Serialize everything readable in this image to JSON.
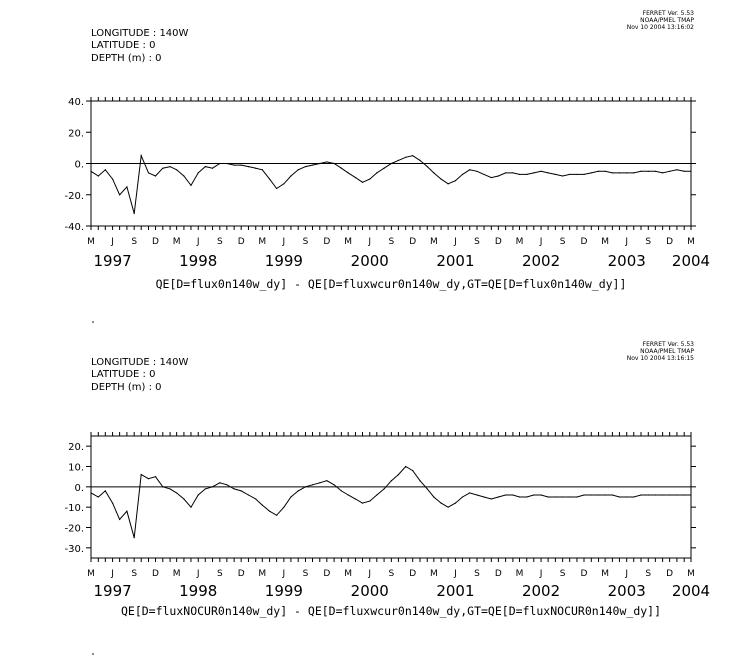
{
  "chart_data": [
    {
      "type": "line",
      "header": {
        "longitude": "LONGITUDE : 140W",
        "latitude": "LATITUDE : 0",
        "depth": "DEPTH (m) : 0"
      },
      "stamp": [
        "FERRET Ver. 5.53",
        "NOAA/PMEL TMAP",
        "Nov 10 2004 13:16:02"
      ],
      "xlabel": "QE[D=flux0n140w_dy] - QE[D=fluxwcur0n140w_dy,GT=QE[D=flux0n140w_dy]]",
      "ylabel": "",
      "ylim": [
        -40,
        40
      ],
      "yticks": [
        -40,
        -20,
        0,
        20,
        40
      ],
      "ytick_labels": [
        "-40.",
        "-20.",
        "0.",
        "20.",
        "40."
      ],
      "xlim": [
        "1997-03-15",
        "2004-03-15"
      ],
      "month_labels": [
        "M",
        "J",
        "S",
        "D",
        "M",
        "J",
        "S",
        "D",
        "M",
        "J",
        "S",
        "D",
        "M",
        "J",
        "S",
        "D",
        "M",
        "J",
        "S",
        "D",
        "M",
        "J",
        "S",
        "D",
        "M",
        "J",
        "S",
        "D",
        "M"
      ],
      "year_labels": [
        "1997",
        "1998",
        "1999",
        "2000",
        "2001",
        "2002",
        "2003",
        "2004"
      ],
      "zero_line": true,
      "series": [
        {
          "x": [
            "1997-03",
            "1997-04",
            "1997-05",
            "1997-06",
            "1997-07",
            "1997-08",
            "1997-09",
            "1997-10",
            "1997-11",
            "1997-12",
            "1998-01",
            "1998-02",
            "1998-03",
            "1998-04",
            "1998-05",
            "1998-06",
            "1998-07",
            "1998-08",
            "1998-09",
            "1998-10",
            "1998-11",
            "1998-12",
            "1999-01",
            "1999-02",
            "1999-03",
            "1999-04",
            "1999-05",
            "1999-06",
            "1999-07",
            "1999-08",
            "1999-09",
            "1999-10",
            "1999-11",
            "1999-12",
            "2000-01",
            "2000-02",
            "2000-03",
            "2000-04",
            "2000-05",
            "2000-06",
            "2000-07",
            "2000-08",
            "2000-09",
            "2000-10",
            "2000-11",
            "2000-12",
            "2001-01",
            "2001-02",
            "2001-03",
            "2001-04",
            "2001-05",
            "2001-06",
            "2001-07",
            "2001-08",
            "2001-09",
            "2001-10",
            "2001-11",
            "2001-12",
            "2002-01",
            "2002-02",
            "2002-03",
            "2002-04",
            "2002-05",
            "2002-06",
            "2002-07",
            "2002-08",
            "2002-09",
            "2002-10",
            "2002-11",
            "2002-12",
            "2003-01",
            "2003-02",
            "2003-03",
            "2003-04",
            "2003-05",
            "2003-06",
            "2003-07",
            "2003-08",
            "2003-09",
            "2003-10",
            "2003-11",
            "2003-12",
            "2004-01",
            "2004-02",
            "2004-03"
          ],
          "y": [
            -5,
            -8,
            -4,
            -10,
            -20,
            -15,
            -32,
            5,
            -6,
            -8,
            -3,
            -2,
            -4,
            -8,
            -14,
            -6,
            -2,
            -3,
            0,
            0,
            -1,
            -1,
            -2,
            -3,
            -4,
            -10,
            -16,
            -13,
            -8,
            -4,
            -2,
            -1,
            0,
            1,
            0,
            -3,
            -6,
            -9,
            -12,
            -10,
            -6,
            -3,
            0,
            2,
            4,
            5,
            2,
            -2,
            -6,
            -10,
            -13,
            -11,
            -7,
            -4,
            -5,
            -7,
            -9,
            -8,
            -6,
            -6,
            -7,
            -7,
            -6,
            -5,
            -6,
            -7,
            -8,
            -7,
            -7,
            -7,
            -6,
            -5,
            -5,
            -6,
            -6,
            -6,
            -6,
            -5,
            -5,
            -5,
            -6,
            -5,
            -4,
            -5,
            -5
          ]
        }
      ]
    },
    {
      "type": "line",
      "header": {
        "longitude": "LONGITUDE : 140W",
        "latitude": "LATITUDE : 0",
        "depth": "DEPTH (m) : 0"
      },
      "stamp": [
        "FERRET Ver. 5.53",
        "NOAA/PMEL TMAP",
        "Nov 10 2004 13:16:15"
      ],
      "xlabel": "QE[D=fluxNOCUR0n140w_dy] - QE[D=fluxwcur0n140w_dy,GT=QE[D=fluxNOCUR0n140w_dy]]",
      "ylabel": "",
      "ylim": [
        -35,
        25
      ],
      "yticks": [
        -30,
        -20,
        -10,
        0,
        10,
        20
      ],
      "ytick_labels": [
        "-30.",
        "-20.",
        "-10.",
        "0.",
        "10.",
        "20."
      ],
      "xlim": [
        "1997-03-15",
        "2004-03-15"
      ],
      "month_labels": [
        "M",
        "J",
        "S",
        "D",
        "M",
        "J",
        "S",
        "D",
        "M",
        "J",
        "S",
        "D",
        "M",
        "J",
        "S",
        "D",
        "M",
        "J",
        "S",
        "D",
        "M",
        "J",
        "S",
        "D",
        "M",
        "J",
        "S",
        "D",
        "M"
      ],
      "year_labels": [
        "1997",
        "1998",
        "1999",
        "2000",
        "2001",
        "2002",
        "2003",
        "2004"
      ],
      "zero_line": true,
      "series": [
        {
          "x": [
            "1997-03",
            "1997-04",
            "1997-05",
            "1997-06",
            "1997-07",
            "1997-08",
            "1997-09",
            "1997-10",
            "1997-11",
            "1997-12",
            "1998-01",
            "1998-02",
            "1998-03",
            "1998-04",
            "1998-05",
            "1998-06",
            "1998-07",
            "1998-08",
            "1998-09",
            "1998-10",
            "1998-11",
            "1998-12",
            "1999-01",
            "1999-02",
            "1999-03",
            "1999-04",
            "1999-05",
            "1999-06",
            "1999-07",
            "1999-08",
            "1999-09",
            "1999-10",
            "1999-11",
            "1999-12",
            "2000-01",
            "2000-02",
            "2000-03",
            "2000-04",
            "2000-05",
            "2000-06",
            "2000-07",
            "2000-08",
            "2000-09",
            "2000-10",
            "2000-11",
            "2000-12",
            "2001-01",
            "2001-02",
            "2001-03",
            "2001-04",
            "2001-05",
            "2001-06",
            "2001-07",
            "2001-08",
            "2001-09",
            "2001-10",
            "2001-11",
            "2001-12",
            "2002-01",
            "2002-02",
            "2002-03",
            "2002-04",
            "2002-05",
            "2002-06",
            "2002-07",
            "2002-08",
            "2002-09",
            "2002-10",
            "2002-11",
            "2002-12",
            "2003-01",
            "2003-02",
            "2003-03",
            "2003-04",
            "2003-05",
            "2003-06",
            "2003-07",
            "2003-08",
            "2003-09",
            "2003-10",
            "2003-11",
            "2003-12",
            "2004-01",
            "2004-02",
            "2004-03"
          ],
          "y": [
            -3,
            -5,
            -2,
            -8,
            -16,
            -12,
            -25,
            6,
            4,
            5,
            0,
            -1,
            -3,
            -6,
            -10,
            -4,
            -1,
            0,
            2,
            1,
            -1,
            -2,
            -4,
            -6,
            -9,
            -12,
            -14,
            -10,
            -5,
            -2,
            0,
            1,
            2,
            3,
            1,
            -2,
            -4,
            -6,
            -8,
            -7,
            -4,
            -1,
            3,
            6,
            10,
            8,
            3,
            -1,
            -5,
            -8,
            -10,
            -8,
            -5,
            -3,
            -4,
            -5,
            -6,
            -5,
            -4,
            -4,
            -5,
            -5,
            -4,
            -4,
            -5,
            -5,
            -5,
            -5,
            -5,
            -4,
            -4,
            -4,
            -4,
            -4,
            -5,
            -5,
            -5,
            -4,
            -4,
            -4,
            -4,
            -4,
            -4,
            -4,
            -4
          ]
        }
      ]
    }
  ]
}
